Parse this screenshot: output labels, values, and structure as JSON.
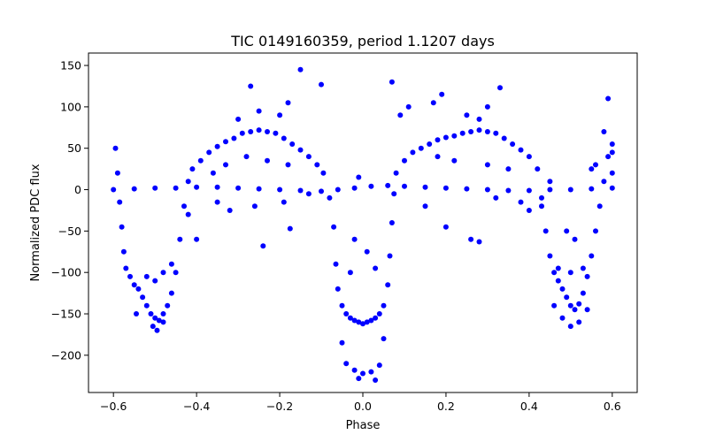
{
  "chart_data": {
    "type": "scatter",
    "title": "TIC 0149160359, period 1.1207 days",
    "xlabel": "Phase",
    "ylabel": "Normalized PDC flux",
    "xlim": [
      -0.66,
      0.66
    ],
    "ylim": [
      -245,
      165
    ],
    "x_ticks": [
      -0.6,
      -0.4,
      -0.2,
      0.0,
      0.2,
      0.4,
      0.6
    ],
    "x_tick_labels": [
      "−0.6",
      "−0.4",
      "−0.2",
      "0.0",
      "0.2",
      "0.4",
      "0.6"
    ],
    "y_ticks": [
      150,
      100,
      50,
      0,
      -50,
      -100,
      -150,
      -200
    ],
    "y_tick_labels": [
      "150",
      "100",
      "50",
      "0",
      "−50",
      "−100",
      "−150",
      "−200"
    ],
    "grid": false,
    "legend": "none",
    "marker_color": "#0000ff",
    "points": [
      [
        -0.6,
        0
      ],
      [
        -0.55,
        1
      ],
      [
        -0.5,
        2
      ],
      [
        -0.45,
        2
      ],
      [
        -0.4,
        3
      ],
      [
        -0.35,
        3
      ],
      [
        -0.3,
        2
      ],
      [
        -0.25,
        1
      ],
      [
        -0.2,
        0
      ],
      [
        -0.15,
        -1
      ],
      [
        -0.1,
        -2
      ],
      [
        -0.06,
        0
      ],
      [
        -0.02,
        2
      ],
      [
        0.02,
        4
      ],
      [
        0.06,
        5
      ],
      [
        0.1,
        4
      ],
      [
        0.15,
        3
      ],
      [
        0.2,
        2
      ],
      [
        0.25,
        1
      ],
      [
        0.3,
        0
      ],
      [
        0.35,
        -1
      ],
      [
        0.4,
        -1
      ],
      [
        0.45,
        0
      ],
      [
        0.5,
        0
      ],
      [
        0.55,
        1
      ],
      [
        0.6,
        2
      ],
      [
        -0.595,
        50
      ],
      [
        -0.59,
        20
      ],
      [
        -0.585,
        -15
      ],
      [
        -0.58,
        -45
      ],
      [
        -0.575,
        -75
      ],
      [
        -0.57,
        -95
      ],
      [
        -0.56,
        -105
      ],
      [
        -0.55,
        -115
      ],
      [
        -0.54,
        -120
      ],
      [
        -0.53,
        -130
      ],
      [
        -0.52,
        -140
      ],
      [
        -0.51,
        -150
      ],
      [
        -0.5,
        -155
      ],
      [
        -0.49,
        -158
      ],
      [
        -0.48,
        -150
      ],
      [
        -0.47,
        -140
      ],
      [
        -0.46,
        -125
      ],
      [
        -0.45,
        -100
      ],
      [
        -0.44,
        -60
      ],
      [
        -0.43,
        -20
      ],
      [
        -0.42,
        10
      ],
      [
        -0.545,
        -150
      ],
      [
        -0.505,
        -165
      ],
      [
        -0.495,
        -170
      ],
      [
        -0.48,
        -160
      ],
      [
        -0.52,
        -105
      ],
      [
        -0.5,
        -110
      ],
      [
        -0.48,
        -100
      ],
      [
        -0.46,
        -90
      ],
      [
        -0.41,
        25
      ],
      [
        -0.39,
        35
      ],
      [
        -0.37,
        45
      ],
      [
        -0.35,
        52
      ],
      [
        -0.33,
        58
      ],
      [
        -0.31,
        62
      ],
      [
        -0.29,
        68
      ],
      [
        -0.27,
        70
      ],
      [
        -0.25,
        72
      ],
      [
        -0.23,
        70
      ],
      [
        -0.21,
        68
      ],
      [
        -0.19,
        62
      ],
      [
        -0.17,
        55
      ],
      [
        -0.15,
        48
      ],
      [
        -0.13,
        40
      ],
      [
        -0.11,
        30
      ],
      [
        -0.095,
        20
      ],
      [
        -0.3,
        85
      ],
      [
        -0.25,
        95
      ],
      [
        -0.2,
        90
      ],
      [
        -0.28,
        40
      ],
      [
        -0.23,
        35
      ],
      [
        -0.18,
        30
      ],
      [
        -0.33,
        30
      ],
      [
        -0.36,
        20
      ],
      [
        -0.27,
        125
      ],
      [
        -0.15,
        145
      ],
      [
        -0.1,
        127
      ],
      [
        -0.18,
        105
      ],
      [
        -0.24,
        -68
      ],
      [
        -0.35,
        -15
      ],
      [
        -0.32,
        -25
      ],
      [
        -0.26,
        -20
      ],
      [
        -0.19,
        -15
      ],
      [
        -0.13,
        -5
      ],
      [
        -0.175,
        -47
      ],
      [
        -0.4,
        -60
      ],
      [
        -0.42,
        -30
      ],
      [
        -0.08,
        -10
      ],
      [
        -0.07,
        -45
      ],
      [
        -0.065,
        -90
      ],
      [
        -0.06,
        -120
      ],
      [
        -0.05,
        -140
      ],
      [
        -0.04,
        -150
      ],
      [
        -0.03,
        -155
      ],
      [
        -0.02,
        -158
      ],
      [
        -0.01,
        -160
      ],
      [
        0.0,
        -162
      ],
      [
        0.01,
        -160
      ],
      [
        0.02,
        -158
      ],
      [
        0.03,
        -155
      ],
      [
        0.04,
        -150
      ],
      [
        0.05,
        -140
      ],
      [
        0.06,
        -115
      ],
      [
        0.065,
        -80
      ],
      [
        0.07,
        -40
      ],
      [
        0.075,
        -5
      ],
      [
        -0.04,
        -210
      ],
      [
        -0.02,
        -218
      ],
      [
        0.0,
        -222
      ],
      [
        0.02,
        -220
      ],
      [
        0.04,
        -212
      ],
      [
        -0.01,
        -228
      ],
      [
        0.03,
        -230
      ],
      [
        -0.05,
        -185
      ],
      [
        0.05,
        -180
      ],
      [
        -0.02,
        -60
      ],
      [
        0.01,
        -75
      ],
      [
        -0.03,
        -100
      ],
      [
        0.03,
        -95
      ],
      [
        -0.01,
        15
      ],
      [
        0.07,
        130
      ],
      [
        0.08,
        20
      ],
      [
        0.1,
        35
      ],
      [
        0.12,
        45
      ],
      [
        0.14,
        50
      ],
      [
        0.16,
        55
      ],
      [
        0.18,
        60
      ],
      [
        0.2,
        63
      ],
      [
        0.22,
        65
      ],
      [
        0.24,
        68
      ],
      [
        0.26,
        70
      ],
      [
        0.28,
        72
      ],
      [
        0.3,
        70
      ],
      [
        0.32,
        68
      ],
      [
        0.34,
        62
      ],
      [
        0.36,
        55
      ],
      [
        0.38,
        48
      ],
      [
        0.4,
        40
      ],
      [
        0.42,
        25
      ],
      [
        0.25,
        90
      ],
      [
        0.3,
        100
      ],
      [
        0.33,
        123
      ],
      [
        0.28,
        85
      ],
      [
        0.18,
        40
      ],
      [
        0.22,
        35
      ],
      [
        0.3,
        30
      ],
      [
        0.35,
        25
      ],
      [
        0.09,
        90
      ],
      [
        0.11,
        100
      ],
      [
        0.17,
        105
      ],
      [
        0.19,
        115
      ],
      [
        0.2,
        -45
      ],
      [
        0.28,
        -63
      ],
      [
        0.26,
        -60
      ],
      [
        0.15,
        -20
      ],
      [
        0.32,
        -10
      ],
      [
        0.38,
        -15
      ],
      [
        0.4,
        -25
      ],
      [
        0.43,
        -10
      ],
      [
        0.44,
        -50
      ],
      [
        0.45,
        -80
      ],
      [
        0.46,
        -100
      ],
      [
        0.47,
        -110
      ],
      [
        0.48,
        -120
      ],
      [
        0.49,
        -130
      ],
      [
        0.5,
        -140
      ],
      [
        0.51,
        -145
      ],
      [
        0.52,
        -138
      ],
      [
        0.53,
        -125
      ],
      [
        0.54,
        -105
      ],
      [
        0.55,
        -80
      ],
      [
        0.56,
        -50
      ],
      [
        0.57,
        -20
      ],
      [
        0.58,
        10
      ],
      [
        0.59,
        40
      ],
      [
        0.6,
        55
      ],
      [
        0.48,
        -155
      ],
      [
        0.5,
        -165
      ],
      [
        0.52,
        -160
      ],
      [
        0.46,
        -140
      ],
      [
        0.54,
        -145
      ],
      [
        0.47,
        -95
      ],
      [
        0.5,
        -100
      ],
      [
        0.53,
        -95
      ],
      [
        0.49,
        -50
      ],
      [
        0.51,
        -60
      ],
      [
        0.43,
        -20
      ],
      [
        0.55,
        25
      ],
      [
        0.58,
        70
      ],
      [
        0.59,
        110
      ],
      [
        0.56,
        30
      ],
      [
        0.45,
        10
      ],
      [
        0.6,
        20
      ],
      [
        0.6,
        45
      ]
    ]
  }
}
